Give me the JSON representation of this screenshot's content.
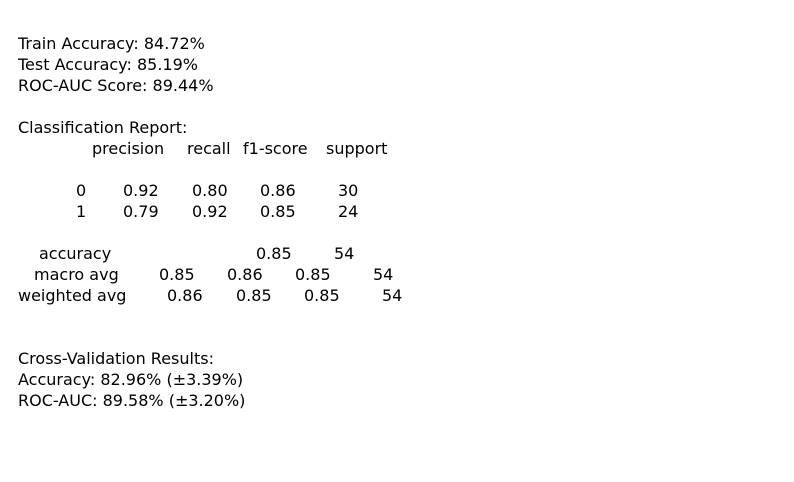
{
  "metrics": {
    "train_accuracy": "Train Accuracy: 84.72%",
    "test_accuracy": "Test Accuracy: 85.19%",
    "roc_auc": "ROC-AUC Score: 89.44%"
  },
  "report": {
    "title": "Classification Report:",
    "headers": {
      "precision": "precision",
      "recall": "recall",
      "f1": "f1-score",
      "support": "support"
    },
    "rows": [
      {
        "label": "0",
        "precision": "0.92",
        "recall": "0.80",
        "f1": "0.86",
        "support": "30"
      },
      {
        "label": "1",
        "precision": "0.79",
        "recall": "0.92",
        "f1": "0.85",
        "support": "24"
      }
    ],
    "accuracy": {
      "label": "accuracy",
      "f1": "0.85",
      "support": "54"
    },
    "macro_avg": {
      "label": "macro avg",
      "precision": "0.85",
      "recall": "0.86",
      "f1": "0.85",
      "support": "54"
    },
    "weighted_avg": {
      "label": "weighted avg",
      "precision": "0.86",
      "recall": "0.85",
      "f1": "0.85",
      "support": "54"
    }
  },
  "cross_validation": {
    "title": "Cross-Validation Results:",
    "accuracy": "Accuracy: 82.96% (±3.39%)",
    "roc_auc": "ROC-AUC: 89.58% (±3.20%)"
  }
}
